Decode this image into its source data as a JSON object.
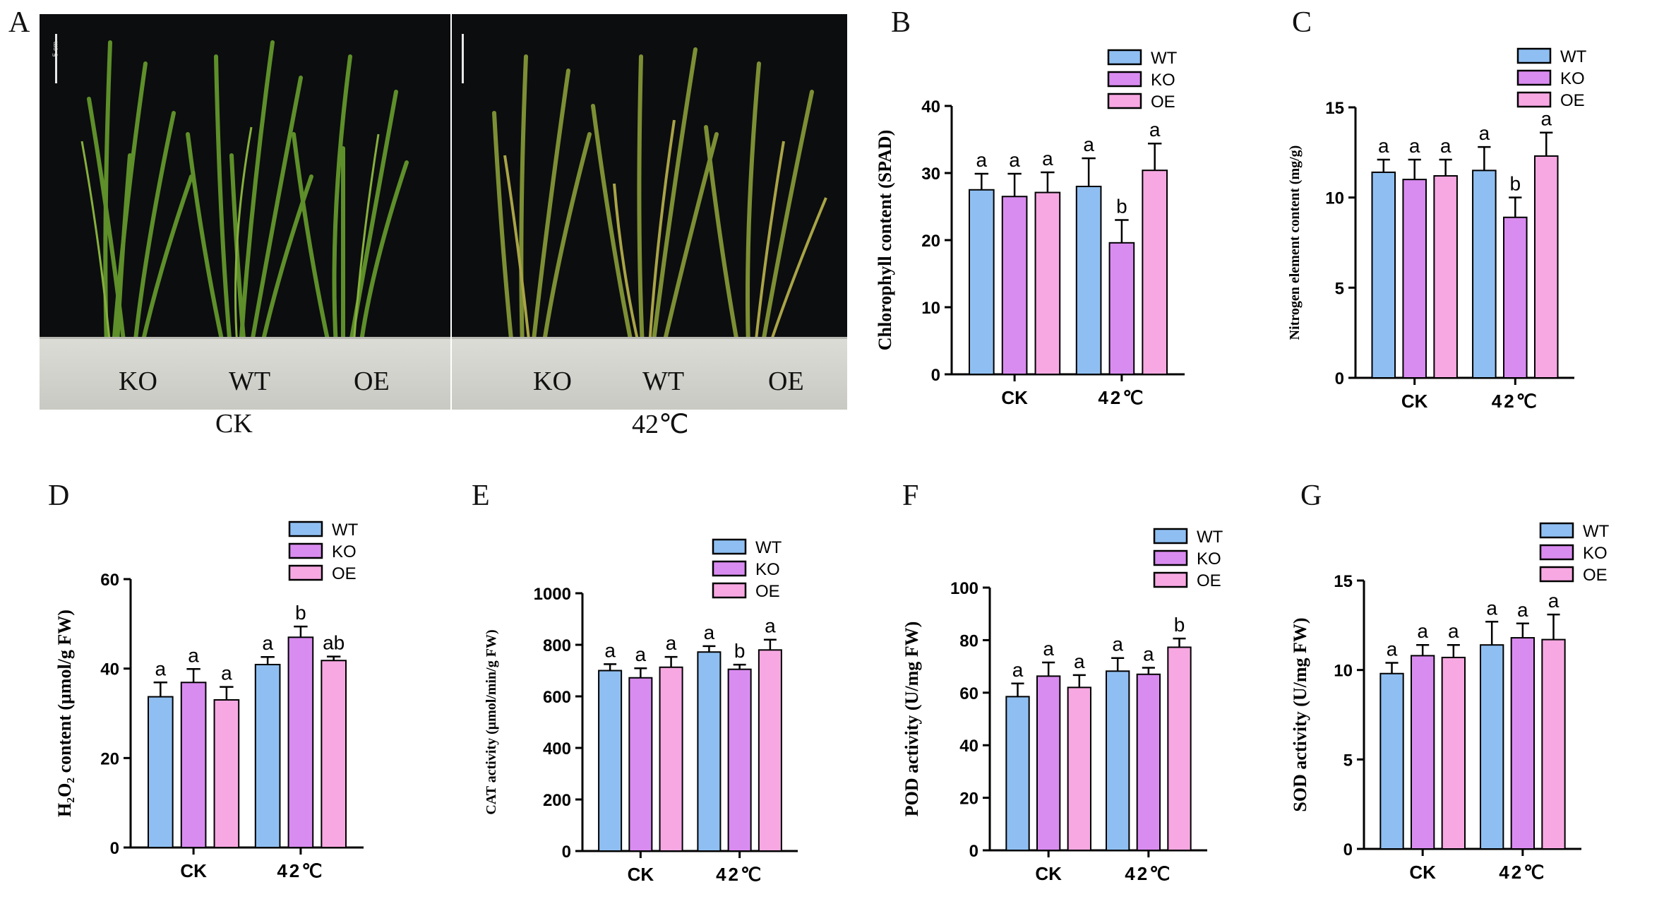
{
  "panel_letters": {
    "A": "A",
    "B": "B",
    "C": "C",
    "D": "D",
    "E": "E",
    "F": "F",
    "G": "G"
  },
  "photo": {
    "left_caption": "CK",
    "right_caption": "42℃",
    "left_pot_labels": [
      "KO",
      "WT",
      "OE"
    ],
    "right_pot_labels": [
      "KO",
      "WT",
      "OE"
    ],
    "scale_label": "5 cm"
  },
  "colors": {
    "WT": "#8fbff2",
    "KO": "#d98cf0",
    "OE": "#f7a8e2",
    "axis": "#000000"
  },
  "chart_data": [
    {
      "panel": "B",
      "type": "bar",
      "ylabel": "Chlorophyll content (SPAD)",
      "categories": [
        "CK",
        "42℃"
      ],
      "ylim": [
        0,
        40
      ],
      "yticks": [
        0,
        10,
        20,
        30,
        40
      ],
      "legend": [
        "WT",
        "KO",
        "OE"
      ],
      "series": [
        {
          "name": "WT",
          "values": [
            27.5,
            28.0
          ],
          "errors": [
            2.4,
            4.2
          ],
          "letters": [
            "a",
            "a"
          ]
        },
        {
          "name": "KO",
          "values": [
            26.5,
            19.6
          ],
          "errors": [
            3.4,
            3.4
          ],
          "letters": [
            "a",
            "b"
          ]
        },
        {
          "name": "OE",
          "values": [
            27.1,
            30.4
          ],
          "errors": [
            3.0,
            4.0
          ],
          "letters": [
            "a",
            "a"
          ]
        }
      ]
    },
    {
      "panel": "C",
      "type": "bar",
      "ylabel": "Nitrogen element content (mg/g)",
      "categories": [
        "CK",
        "42℃"
      ],
      "ylim": [
        0,
        15
      ],
      "yticks": [
        0,
        5,
        10,
        15
      ],
      "legend": [
        "WT",
        "KO",
        "OE"
      ],
      "series": [
        {
          "name": "WT",
          "values": [
            11.4,
            11.5
          ],
          "errors": [
            0.7,
            1.3
          ],
          "letters": [
            "a",
            "a"
          ]
        },
        {
          "name": "KO",
          "values": [
            11.0,
            8.9
          ],
          "errors": [
            1.1,
            1.1
          ],
          "letters": [
            "a",
            "b"
          ]
        },
        {
          "name": "OE",
          "values": [
            11.2,
            12.3
          ],
          "errors": [
            0.9,
            1.3
          ],
          "letters": [
            "a",
            "a"
          ]
        }
      ]
    },
    {
      "panel": "D",
      "type": "bar",
      "ylabel": "H₂O₂ content (μmol/g FW)",
      "categories": [
        "CK",
        "42℃"
      ],
      "ylim": [
        0,
        60
      ],
      "yticks": [
        0,
        20,
        40,
        60
      ],
      "legend": [
        "WT",
        "KO",
        "OE"
      ],
      "series": [
        {
          "name": "WT",
          "values": [
            33.7,
            40.9
          ],
          "errors": [
            3.2,
            1.7
          ],
          "letters": [
            "a",
            "a"
          ]
        },
        {
          "name": "KO",
          "values": [
            36.9,
            47.0
          ],
          "errors": [
            3.0,
            2.4
          ],
          "letters": [
            "a",
            "b"
          ]
        },
        {
          "name": "OE",
          "values": [
            33.0,
            41.8
          ],
          "errors": [
            2.9,
            0.9
          ],
          "letters": [
            "a",
            "ab"
          ]
        }
      ]
    },
    {
      "panel": "E",
      "type": "bar",
      "ylabel": "CAT activity (μmol/min/g FW)",
      "categories": [
        "CK",
        "42℃"
      ],
      "ylim": [
        0,
        1000
      ],
      "yticks": [
        0,
        200,
        400,
        600,
        800,
        1000
      ],
      "legend": [
        "WT",
        "KO",
        "OE"
      ],
      "series": [
        {
          "name": "WT",
          "values": [
            700,
            772
          ],
          "errors": [
            25,
            23
          ],
          "letters": [
            "a",
            "a"
          ]
        },
        {
          "name": "KO",
          "values": [
            672,
            705
          ],
          "errors": [
            37,
            18
          ],
          "letters": [
            "a",
            "b"
          ]
        },
        {
          "name": "OE",
          "values": [
            713,
            780
          ],
          "errors": [
            40,
            40
          ],
          "letters": [
            "a",
            "a"
          ]
        }
      ]
    },
    {
      "panel": "F",
      "type": "bar",
      "ylabel": "POD activity (U/mg FW)",
      "categories": [
        "CK",
        "42℃"
      ],
      "ylim": [
        0,
        100
      ],
      "yticks": [
        0,
        20,
        40,
        60,
        80,
        100
      ],
      "legend": [
        "WT",
        "KO",
        "OE"
      ],
      "series": [
        {
          "name": "WT",
          "values": [
            58.5,
            68.2
          ],
          "errors": [
            5.0,
            5.0
          ],
          "letters": [
            "a",
            "a"
          ]
        },
        {
          "name": "KO",
          "values": [
            66.3,
            67.0
          ],
          "errors": [
            5.2,
            2.5
          ],
          "letters": [
            "a",
            "a"
          ]
        },
        {
          "name": "OE",
          "values": [
            62.0,
            77.3
          ],
          "errors": [
            4.7,
            3.3
          ],
          "letters": [
            "a",
            "b"
          ]
        }
      ]
    },
    {
      "panel": "G",
      "type": "bar",
      "ylabel": "SOD activity (U/mg FW)",
      "categories": [
        "CK",
        "42℃"
      ],
      "ylim": [
        0,
        15
      ],
      "yticks": [
        0,
        5,
        10,
        15
      ],
      "legend": [
        "WT",
        "KO",
        "OE"
      ],
      "series": [
        {
          "name": "WT",
          "values": [
            9.8,
            11.4
          ],
          "errors": [
            0.6,
            1.3
          ],
          "letters": [
            "a",
            "a"
          ]
        },
        {
          "name": "KO",
          "values": [
            10.8,
            11.8
          ],
          "errors": [
            0.6,
            0.8
          ],
          "letters": [
            "a",
            "a"
          ]
        },
        {
          "name": "OE",
          "values": [
            10.7,
            11.7
          ],
          "errors": [
            0.7,
            1.4
          ],
          "letters": [
            "a",
            "a"
          ]
        }
      ]
    }
  ]
}
